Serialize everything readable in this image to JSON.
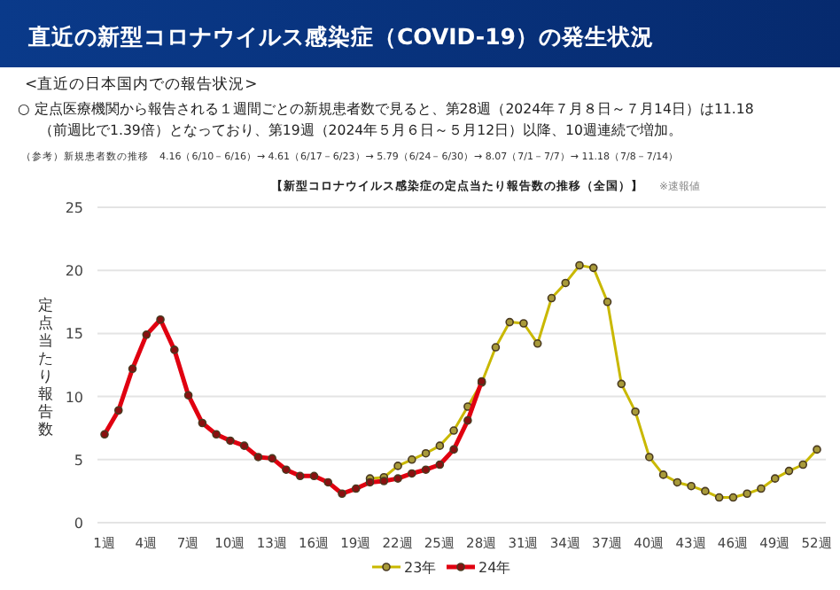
{
  "chart_data": {
    "type": "line",
    "title": "直近の新型コロナウイルス感染症（COVID-19）の発生状況",
    "subtitle": "【新型コロナウイルス感染症の定点当たり報告数の推移（全国）】",
    "annotations": [
      "<直近の日本国内での報告状況>",
      "○ 定点医療機関から報告される１週間ごとの新規患者数で見ると、第28週（2024年７月８日～７月14日）は11.18",
      "（前週比で1.39倍）となっており、第19週（2024年５月６日～５月12日）以降、10週連続で増加。",
      "（参考）新規患者数の推移　4.16（6/10－6/16）→ 4.61（6/17－6/23）→ 5.79（6/24－6/30）→ 8.07（7/1－7/7）→ 11.18（7/8－7/14）",
      "※速報値"
    ],
    "ylabel": "定点当たり報告数",
    "categories": [
      "1週",
      null,
      null,
      "4週",
      null,
      null,
      "7週",
      null,
      null,
      "10週",
      null,
      null,
      "13週",
      null,
      null,
      "16週",
      null,
      null,
      "19週",
      null,
      null,
      "22週",
      null,
      null,
      "25週",
      null,
      null,
      "28週",
      null,
      null,
      "31週",
      null,
      null,
      "34週",
      null,
      null,
      "37週",
      null,
      null,
      "40週",
      null,
      null,
      "43週",
      null,
      null,
      "46週",
      null,
      null,
      "49週",
      null,
      null,
      "52週"
    ],
    "series": [
      {
        "name": "23年",
        "color": "#c9b800",
        "values": [
          null,
          null,
          null,
          null,
          null,
          null,
          null,
          null,
          null,
          null,
          null,
          null,
          null,
          null,
          null,
          null,
          null,
          null,
          null,
          3.5,
          3.6,
          4.5,
          5.0,
          5.5,
          6.1,
          7.3,
          9.2,
          11.1,
          13.9,
          15.9,
          15.8,
          14.2,
          17.8,
          19.0,
          20.4,
          20.2,
          17.5,
          11.0,
          8.8,
          5.2,
          3.8,
          3.2,
          2.9,
          2.5,
          2.0,
          2.0,
          2.3,
          2.7,
          3.5,
          4.1,
          4.6,
          5.8
        ]
      },
      {
        "name": "24年",
        "color": "#e00010",
        "values": [
          7.0,
          8.9,
          12.2,
          14.9,
          16.1,
          13.7,
          10.1,
          7.9,
          7.0,
          6.5,
          6.1,
          5.2,
          5.1,
          4.2,
          3.7,
          3.7,
          3.2,
          2.3,
          2.7,
          3.2,
          3.3,
          3.5,
          3.9,
          4.2,
          4.6,
          5.8,
          8.1,
          11.2,
          null,
          null,
          null,
          null,
          null,
          null,
          null,
          null,
          null,
          null,
          null,
          null,
          null,
          null,
          null,
          null,
          null,
          null,
          null,
          null,
          null,
          null,
          null,
          null
        ]
      }
    ],
    "ylim": [
      0,
      25
    ],
    "yticks": [
      0,
      5,
      10,
      15,
      20,
      25
    ],
    "grid": "y",
    "legend": "bottom",
    "marker": "circle",
    "line_style": "solid"
  }
}
